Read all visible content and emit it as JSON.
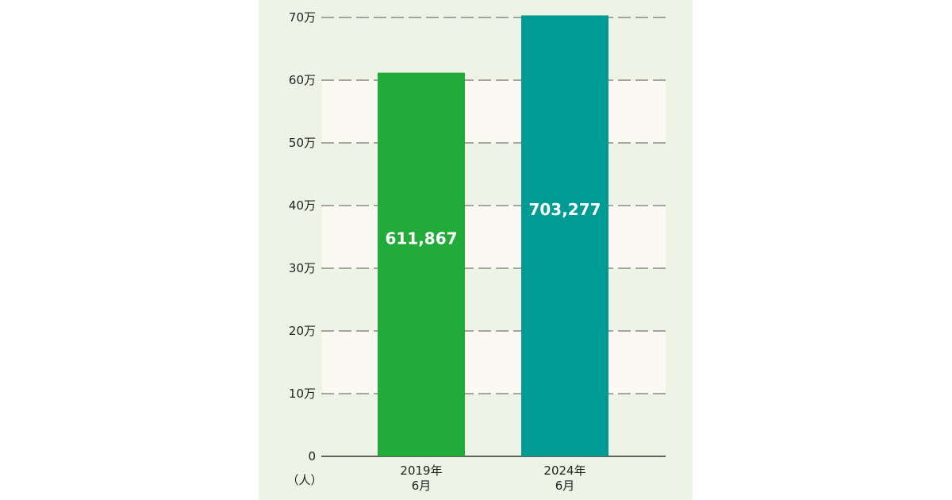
{
  "chart_data": {
    "type": "bar",
    "categories": [
      [
        "2019年",
        "6月"
      ],
      [
        "2024年",
        "6月"
      ]
    ],
    "values": [
      611867,
      703277
    ],
    "data_labels": [
      "611,867",
      "703,277"
    ],
    "bar_colors": [
      "#22ab3a",
      "#009b93"
    ],
    "unit_label": "（人）",
    "yticks": [
      {
        "value": 0,
        "label": "0"
      },
      {
        "value": 100000,
        "label": "10万"
      },
      {
        "value": 200000,
        "label": "20万"
      },
      {
        "value": 300000,
        "label": "30万"
      },
      {
        "value": 400000,
        "label": "40万"
      },
      {
        "value": 500000,
        "label": "50万"
      },
      {
        "value": 600000,
        "label": "60万"
      },
      {
        "value": 700000,
        "label": "70万"
      }
    ],
    "ylim": [
      0,
      700000
    ],
    "grid": "dashed horizontal",
    "title": "",
    "xlabel": "",
    "ylabel": ""
  },
  "colors": {
    "panel_background": "#edf4e6",
    "band_background": "#fbf9f2",
    "grid_line": "#555555",
    "axis_line": "#333333"
  }
}
